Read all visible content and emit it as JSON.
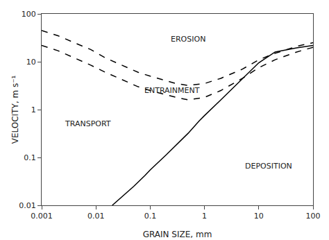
{
  "chart_data": {
    "type": "line",
    "xlabel": "GRAIN SIZE, mm",
    "ylabel": "VELOCITY, m s⁻¹",
    "log": true,
    "grid": false,
    "xlim": [
      0.001,
      100
    ],
    "ylim": [
      0.01,
      100
    ],
    "xticks": [
      0.001,
      0.01,
      0.1,
      1,
      10,
      100
    ],
    "yticks": [
      0.01,
      0.1,
      1,
      10,
      100
    ],
    "series": [
      {
        "color": "#000000",
        "line_style": "dashed",
        "x": [
          0.001,
          0.002,
          0.004,
          0.008,
          0.015,
          0.03,
          0.06,
          0.1,
          0.2,
          0.3,
          0.5,
          1.0,
          2.0,
          5.0,
          10.0,
          20.0,
          50.0,
          100.0
        ],
        "values": [
          45.0,
          35.0,
          25.0,
          18.0,
          12.0,
          8.5,
          6.0,
          5.0,
          4.0,
          3.5,
          3.2,
          3.5,
          4.5,
          7.0,
          11.0,
          15.0,
          21.0,
          25.0
        ]
      },
      {
        "color": "#000000",
        "line_style": "dashed",
        "x": [
          0.001,
          0.002,
          0.004,
          0.008,
          0.015,
          0.03,
          0.06,
          0.1,
          0.2,
          0.3,
          0.5,
          1.0,
          2.0,
          5.0,
          10.0,
          20.0,
          50.0,
          100.0
        ],
        "values": [
          22.0,
          17.0,
          12.0,
          8.5,
          6.0,
          4.2,
          3.0,
          2.5,
          2.0,
          1.8,
          1.6,
          1.8,
          2.5,
          4.5,
          7.5,
          11.0,
          16.0,
          20.0
        ]
      },
      {
        "color": "#000000",
        "line_style": "solid",
        "x": [
          0.02,
          0.03,
          0.05,
          0.08,
          0.1,
          0.2,
          0.3,
          0.5,
          0.8,
          1.0,
          2.0,
          3.0,
          5.0,
          10.0,
          20.0,
          50.0,
          100.0
        ],
        "values": [
          0.01,
          0.015,
          0.025,
          0.042,
          0.055,
          0.115,
          0.18,
          0.32,
          0.58,
          0.75,
          1.6,
          2.5,
          4.5,
          9.5,
          16.0,
          19.5,
          22.0
        ]
      }
    ],
    "annotations": [
      {
        "text": "EROSION",
        "x": 0.5,
        "y": 30.0
      },
      {
        "text": "ENTRAINMENT",
        "x": 0.25,
        "y": 2.5
      },
      {
        "text": "TRANSPORT",
        "x": 0.007,
        "y": 0.5
      },
      {
        "text": "DEPOSITION",
        "x": 15.0,
        "y": 0.065
      }
    ]
  }
}
